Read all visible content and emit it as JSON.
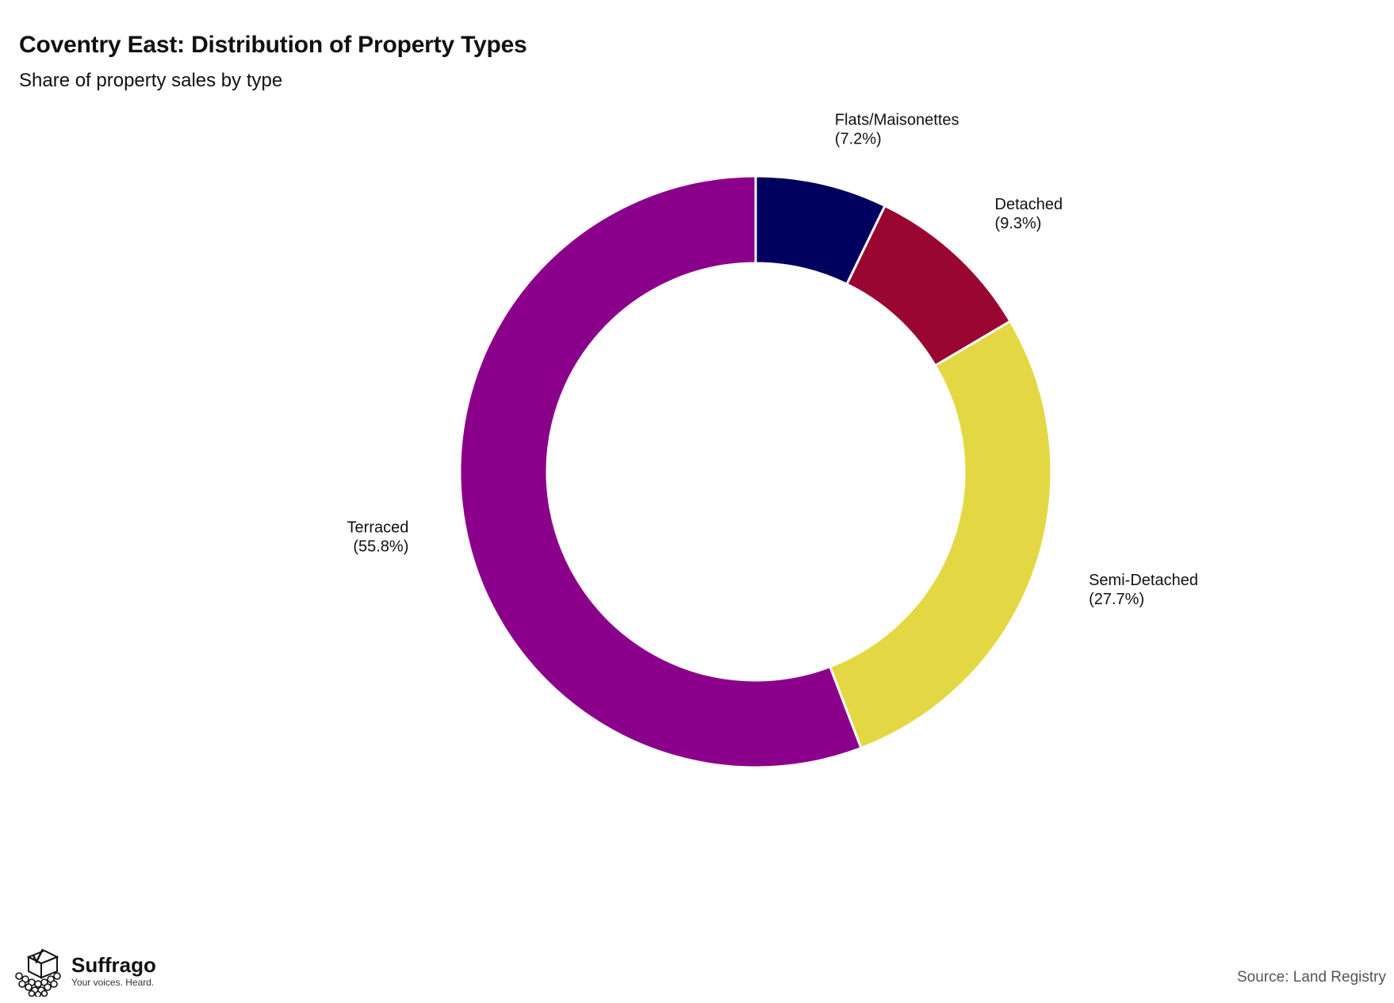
{
  "chart_data": {
    "type": "pie",
    "variant": "donut",
    "title": "Coventry East: Distribution of Property Types",
    "subtitle": "Share of property sales by type",
    "slices": [
      {
        "name": "Flats/Maisonettes",
        "value": 7.2,
        "label": "(7.2%)",
        "color": "#00005e"
      },
      {
        "name": "Detached",
        "value": 9.3,
        "label": "(9.3%)",
        "color": "#9a0632"
      },
      {
        "name": "Semi-Detached",
        "value": 27.7,
        "label": "(27.7%)",
        "color": "#e3d843"
      },
      {
        "name": "Terraced",
        "value": 55.8,
        "label": "(55.8%)",
        "color": "#8b008b"
      }
    ],
    "start_angle": "12 o'clock",
    "direction": "clockwise",
    "separator_color": "#ffffff",
    "label_placement": "outside"
  },
  "footer": {
    "logo_name": "Suffrago",
    "logo_tagline": "Your voices. Heard.",
    "logo_icon": "ballot-box-crowd-icon",
    "source": "Source: Land Registry"
  }
}
